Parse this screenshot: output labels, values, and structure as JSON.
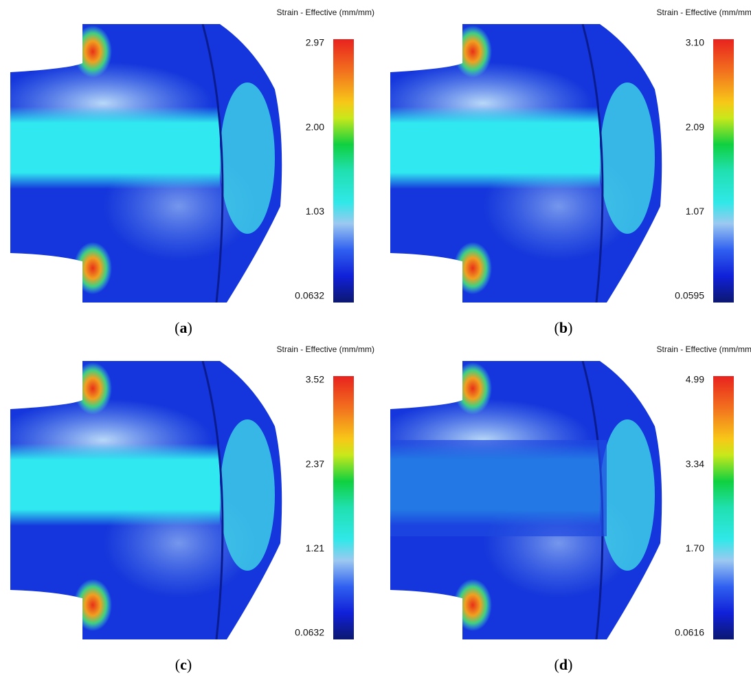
{
  "panels": [
    {
      "title": "Strain - Effective (mm/mm)",
      "ticks": [
        "2.97",
        "2.00",
        "1.03",
        "0.0632"
      ],
      "caption": [
        "(",
        "a",
        ")"
      ]
    },
    {
      "title": "Strain - Effective (mm/mm)",
      "ticks": [
        "3.10",
        "2.09",
        "1.07",
        "0.0595"
      ],
      "caption": [
        "(",
        "b",
        ")"
      ]
    },
    {
      "title": "Strain - Effective (mm/mm)",
      "ticks": [
        "3.52",
        "2.37",
        "1.21",
        "0.0632"
      ],
      "caption": [
        "(",
        "c",
        ")"
      ]
    },
    {
      "title": "Strain - Effective (mm/mm)",
      "ticks": [
        "4.99",
        "3.34",
        "1.70",
        "0.0616"
      ],
      "caption": [
        "(",
        "d",
        ")"
      ]
    }
  ]
}
